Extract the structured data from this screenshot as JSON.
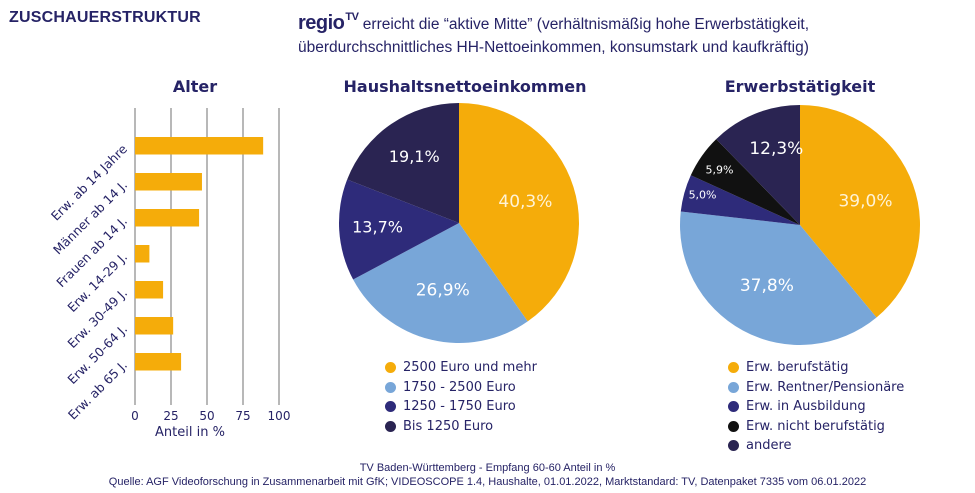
{
  "header": {
    "section_title": "ZUSCHAUERSTRUKTUR",
    "brand": "regio",
    "brand_sup": "TV",
    "headline_line1": "erreicht die “aktive Mitte” (verhältnismäßig hohe Erwerbstätigkeit,",
    "headline_line2": "überdurchschnittliches HH-Nettoeinkommen, konsumstark und kaufkräftig)"
  },
  "colors": {
    "gold": "#F5AC0A",
    "light_blue": "#78A6D8",
    "blue": "#2E2B7A",
    "black": "#111111",
    "navy": "#2A2452",
    "text": "#262366",
    "grid": "#A0A0A0"
  },
  "chart_data": [
    {
      "type": "bar",
      "orientation": "horizontal",
      "title": "Alter",
      "categories": [
        "Erw. ab 14 Jahre",
        "Männer ab 14  J.",
        "Frauen ab 14  J.",
        "Erw. 14-29  J.",
        "Erw. 30-49 J.",
        "Erw. 50-64 J.",
        "Erw. ab 65 J."
      ],
      "values": [
        89,
        46.5,
        44.5,
        10,
        19.5,
        26.5,
        32
      ],
      "xlabel": "Anteil in %",
      "ylabel": "",
      "xlim": [
        0,
        100
      ],
      "xticks": [
        0,
        25,
        50,
        75,
        100
      ],
      "xtick_labels": [
        "0",
        "25",
        "50",
        "75",
        "100"
      ],
      "grid": true,
      "color": "#F5AC0A"
    },
    {
      "type": "pie",
      "title": "Haushaltsnettoeinkommen",
      "categories": [
        "2500 Euro und mehr",
        "1750 - 2500 Euro",
        "1250 - 1750 Euro",
        "Bis 1250 Euro"
      ],
      "values": [
        40.3,
        26.9,
        13.7,
        19.1
      ],
      "data_labels": [
        "40,3%",
        "26,9%",
        "13,7%",
        "19,1%"
      ],
      "colors": [
        "#F5AC0A",
        "#78A6D8",
        "#2E2B7A",
        "#2A2452"
      ],
      "legend_position": "bottom"
    },
    {
      "type": "pie",
      "title": "Erwerbstätigkeit",
      "categories": [
        "Erw. berufstätig",
        "Erw. Rentner/Pensionäre",
        "Erw. in Ausbildung",
        "Erw. nicht berufstätig",
        "andere"
      ],
      "values": [
        39.0,
        37.8,
        5.0,
        5.9,
        12.3
      ],
      "data_labels": [
        "39,0%",
        "37,8%",
        "5,0%",
        "5,9%",
        "12,3%"
      ],
      "colors": [
        "#F5AC0A",
        "#78A6D8",
        "#2E2B7A",
        "#111111",
        "#2A2452"
      ],
      "legend_position": "bottom"
    }
  ],
  "footer": {
    "line1": "TV Baden-Württemberg - Empfang 60-60 Anteil in %",
    "line2": "Quelle: AGF Videoforschung in Zusammenarbeit mit GfK; VIDEOSCOPE 1.4, Haushalte, 01.01.2022,  Marktstandard: TV, Datenpaket 7335 vom 06.01.2022"
  }
}
